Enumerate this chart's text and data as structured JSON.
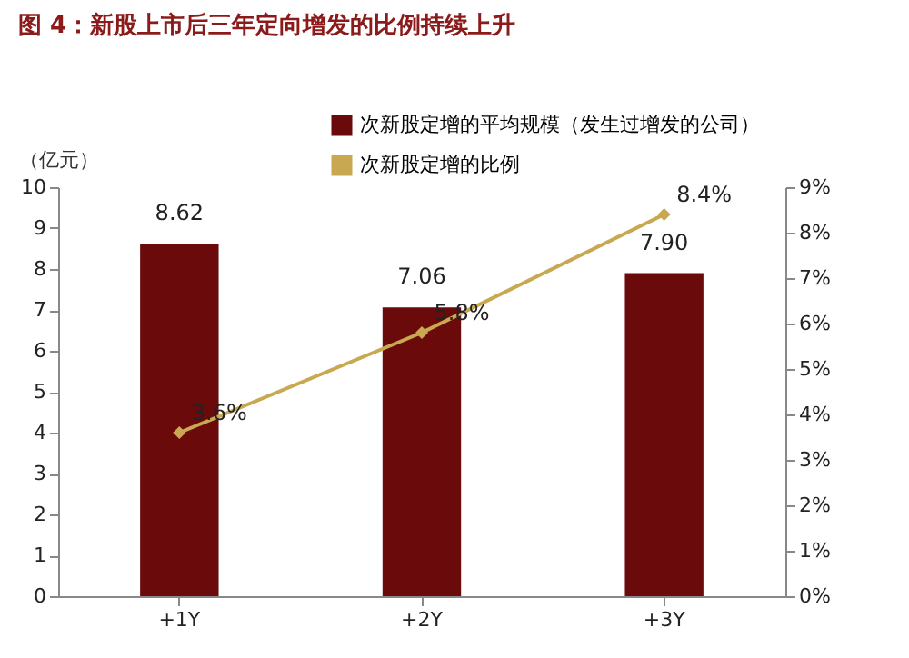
{
  "chart_data": {
    "type": "bar",
    "title": "图 4：新股上市后三年定向增发的比例持续上升",
    "ylabel": "（亿元）",
    "categories": [
      "+1Y",
      "+2Y",
      "+3Y"
    ],
    "series": [
      {
        "name": "次新股定增的平均规模（发生过增发的公司）",
        "color": "#6b0a0a",
        "values": [
          8.62,
          7.06,
          7.9
        ],
        "value_labels": [
          "8.62",
          "7.06",
          "7.90"
        ]
      },
      {
        "name": "次新股定增的比例",
        "type": "line",
        "axis": "y2",
        "color": "#c8a951",
        "values": [
          3.6,
          5.8,
          8.4
        ],
        "value_labels": [
          "3.6%",
          "5.8%",
          "8.4%"
        ]
      }
    ],
    "ylim": [
      0,
      10
    ],
    "yticks": [
      0,
      1,
      2,
      3,
      4,
      5,
      6,
      7,
      8,
      9,
      10
    ],
    "y2lim": [
      0,
      9
    ],
    "y2ticks": [
      {
        "value": 0,
        "label": "0%"
      },
      {
        "value": 1,
        "label": "1%"
      },
      {
        "value": 2,
        "label": "2%"
      },
      {
        "value": 3,
        "label": "3%"
      },
      {
        "value": 4,
        "label": "4%"
      },
      {
        "value": 5,
        "label": "5%"
      },
      {
        "value": 6,
        "label": "6%"
      },
      {
        "value": 7,
        "label": "7%"
      },
      {
        "value": 8,
        "label": "8%"
      },
      {
        "value": 9,
        "label": "9%"
      }
    ],
    "legend": "top right",
    "marker": "diamond",
    "line_style": "solid"
  }
}
